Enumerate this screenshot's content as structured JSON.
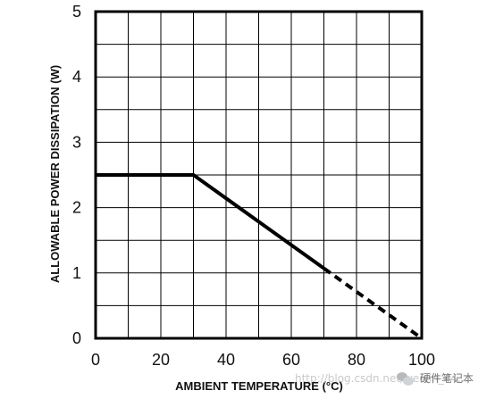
{
  "chart_data": {
    "type": "line",
    "xlabel": "AMBIENT TEMPERATURE (°C)",
    "ylabel": "ALLOWABLE POWER DISSIPATION (W)",
    "xlim": [
      0,
      100
    ],
    "ylim": [
      0,
      5
    ],
    "x_ticks": [
      "0",
      "20",
      "40",
      "60",
      "80",
      "100"
    ],
    "y_ticks": [
      "0",
      "1",
      "2",
      "3",
      "4",
      "5"
    ],
    "grid": true,
    "series": [
      {
        "style": "solid",
        "x": [
          0,
          30,
          70
        ],
        "y": [
          2.5,
          2.5,
          1.07
        ]
      },
      {
        "style": "dashed",
        "x": [
          70,
          100
        ],
        "y": [
          1.07,
          0
        ]
      }
    ]
  },
  "watermark": {
    "url_text": "http://blog.csdn.net/weixin_44...",
    "brand_text": "硬件笔记本"
  }
}
